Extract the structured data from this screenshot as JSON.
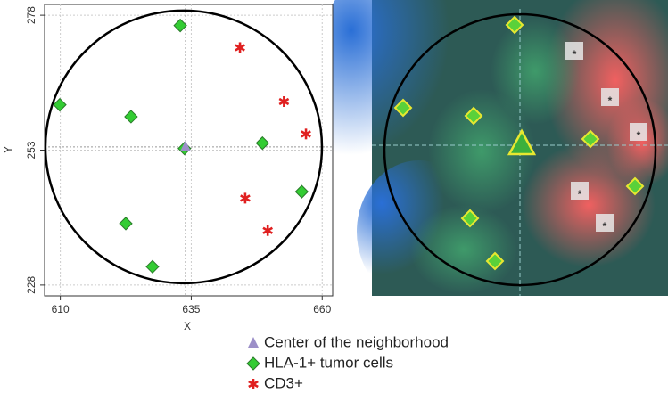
{
  "chart_data": {
    "type": "scatter",
    "xlabel": "X",
    "ylabel": "Y",
    "xlim": [
      607,
      662
    ],
    "ylim": [
      226,
      280
    ],
    "xticks": [
      610,
      635,
      660
    ],
    "yticks": [
      228,
      253,
      278
    ],
    "grid": true,
    "series": [
      {
        "name": "Center of the neighborhood",
        "color": "#9c8fc8",
        "marker": "triangle",
        "x": [
          633.9
        ],
        "y": [
          253.6
        ]
      },
      {
        "name": "HLA-1+ tumor cells",
        "color": "#33cc33",
        "marker": "diamond",
        "x": [
          632.9,
          609.9,
          623.5,
          633.7,
          648.6,
          656.1,
          622.5,
          627.6
        ],
        "y": [
          276.1,
          261.4,
          259.2,
          253.3,
          254.3,
          245.3,
          239.4,
          231.4
        ]
      },
      {
        "name": "CD3+",
        "color": "#e02020",
        "marker": "star",
        "x": [
          644.3,
          652.7,
          656.9,
          645.3,
          649.6
        ],
        "y": [
          272.0,
          262.0,
          256.0,
          244.1,
          238.1
        ]
      }
    ]
  }
}
